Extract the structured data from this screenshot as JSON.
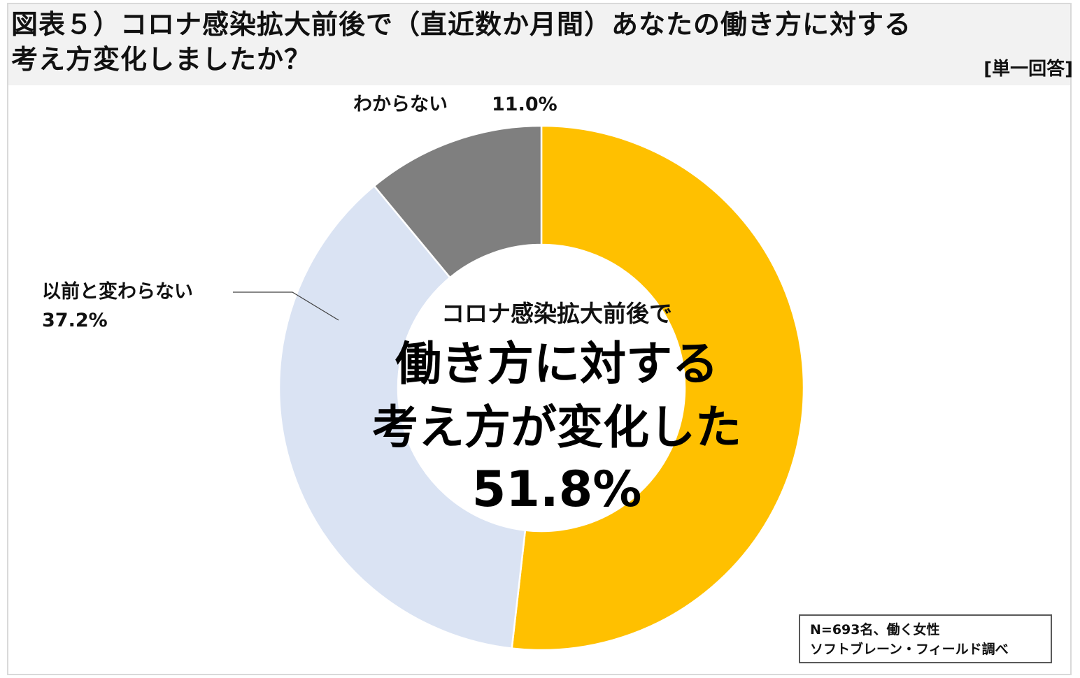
{
  "title": {
    "line1": "図表５）コロナ感染拡大前後で（直近数か月間）あなたの働き方に対する",
    "line2": "考え方変化しましたか？"
  },
  "answer_type": "[単一回答]",
  "center_label": {
    "line1": "コロナ感染拡大前後で",
    "line2": "働き方に対する",
    "line3": "考え方が変化した",
    "line4": "51.8%"
  },
  "note": {
    "line1": "N=693名、働く女性",
    "line2": "ソフトブレーン・フィールド調べ"
  },
  "chart_data": {
    "type": "pie",
    "title": "図表５）コロナ感染拡大前後で（直近数か月間）あなたの働き方に対する考え方変化しましたか？",
    "donut": true,
    "start": "12 o'clock, clockwise",
    "slices": [
      {
        "label": "考え方が変化した",
        "value": 51.8,
        "display": "51.8%",
        "color": "#ffc000"
      },
      {
        "label": "以前と変わらない",
        "value": 37.2,
        "display": "37.2%",
        "color": "#dae3f3"
      },
      {
        "label": "わからない",
        "value": 11.0,
        "display": "11.0%",
        "color": "#7f7f7f"
      }
    ]
  }
}
